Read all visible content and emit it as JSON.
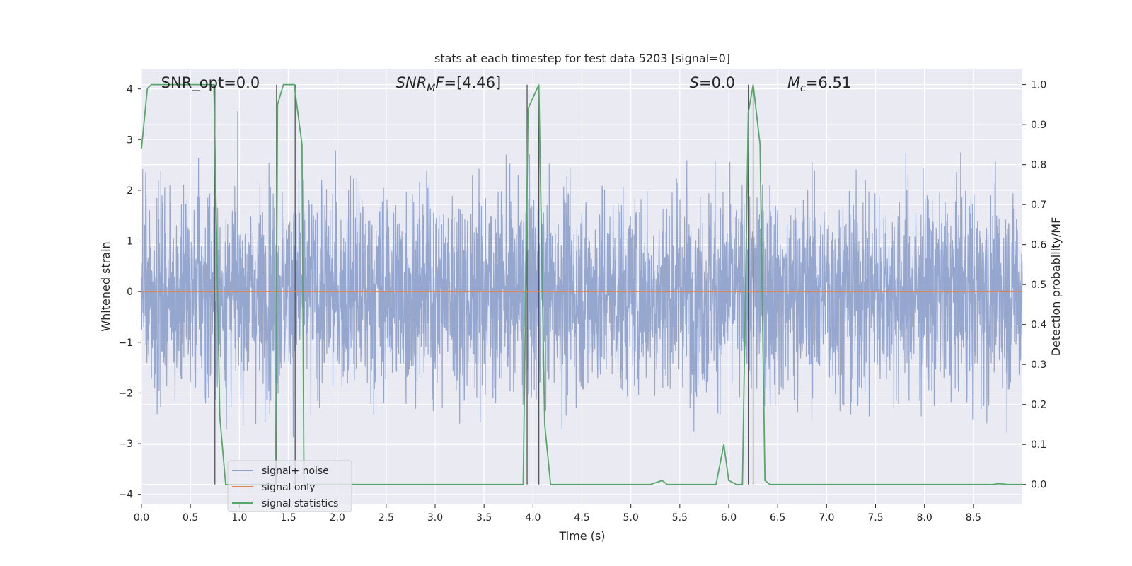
{
  "chart_data": {
    "type": "line",
    "title": "stats at each timestep for test data 5203 [signal=0]",
    "xlabel": "Time (s)",
    "ylabel": "Whitened strain",
    "ylabel_right": "Detection probability/MF",
    "xlim": [
      0,
      9
    ],
    "ylim": [
      -4.2,
      4.4
    ],
    "ylim_right": [
      -0.05,
      1.04
    ],
    "x_ticks": [
      "0.0",
      "0.5",
      "1.0",
      "1.5",
      "2.0",
      "2.5",
      "3.0",
      "3.5",
      "4.0",
      "4.5",
      "5.0",
      "5.5",
      "6.0",
      "6.5",
      "7.0",
      "7.5",
      "8.0",
      "8.5"
    ],
    "y_ticks": [
      "−4",
      "−3",
      "−2",
      "−1",
      "0",
      "1",
      "2",
      "3",
      "4"
    ],
    "y_ticks_right": [
      "0.0",
      "0.1",
      "0.2",
      "0.3",
      "0.4",
      "0.5",
      "0.6",
      "0.7",
      "0.8",
      "0.9",
      "1.0"
    ],
    "grid": true,
    "legend_position": "lower-left",
    "annotations": [
      {
        "text": "SNR_opt=0.0",
        "x": 0.2
      },
      {
        "text": "SNR_MF=[4.46]",
        "x": 2.6,
        "main": "SNR",
        "sub": "MF",
        "rest": "F=[4.46]",
        "subtext": "M"
      },
      {
        "text": "S=0.0",
        "x": 5.6,
        "italic": "S",
        "rest": "=0.0"
      },
      {
        "text": "M_c=6.51",
        "x": 6.6,
        "italic": "M",
        "sub": "c",
        "rest": "=6.51"
      }
    ],
    "vertical_markers": [
      0.75,
      1.38,
      1.57,
      3.94,
      4.06,
      6.2,
      6.25
    ],
    "series": [
      {
        "name": "signal+ noise",
        "color": "#8da0cb",
        "axis": "left",
        "noise_amplitude": 1.3,
        "noise_extreme_range": [
          -3.6,
          4.0
        ]
      },
      {
        "name": "signal only",
        "color": "#dd8452",
        "axis": "left",
        "x": [
          0,
          9
        ],
        "y": [
          0,
          0
        ]
      },
      {
        "name": "signal statistics",
        "color": "#55a868",
        "axis": "right",
        "x": [
          0.0,
          0.06,
          0.1,
          0.2,
          0.7,
          0.74,
          0.8,
          0.86,
          0.9,
          1.0,
          1.3,
          1.37,
          1.39,
          1.45,
          1.5,
          1.56,
          1.64,
          1.66,
          1.7,
          2.0,
          3.5,
          3.9,
          3.95,
          4.06,
          4.12,
          4.18,
          4.5,
          5.0,
          5.2,
          5.32,
          5.37,
          5.45,
          5.8,
          5.87,
          5.95,
          6.0,
          6.08,
          6.14,
          6.2,
          6.25,
          6.32,
          6.37,
          6.42,
          6.5,
          7.0,
          8.0,
          8.7,
          8.76,
          8.85,
          9.0
        ],
        "y": [
          0.84,
          0.99,
          1.0,
          1.0,
          1.0,
          1.0,
          0.17,
          0.0,
          0.0,
          0.0,
          0.0,
          0.0,
          0.95,
          1.0,
          1.0,
          1.0,
          0.85,
          0.0,
          0.0,
          0.0,
          0.0,
          0.0,
          0.94,
          1.0,
          0.15,
          0.0,
          0.0,
          0.0,
          0.0,
          0.01,
          0.0,
          0.0,
          0.0,
          0.0,
          0.1,
          0.01,
          0.0,
          0.0,
          0.93,
          1.0,
          0.85,
          0.01,
          0.0,
          0.0,
          0.0,
          0.0,
          0.0,
          0.002,
          0.0,
          0.0
        ]
      }
    ]
  }
}
